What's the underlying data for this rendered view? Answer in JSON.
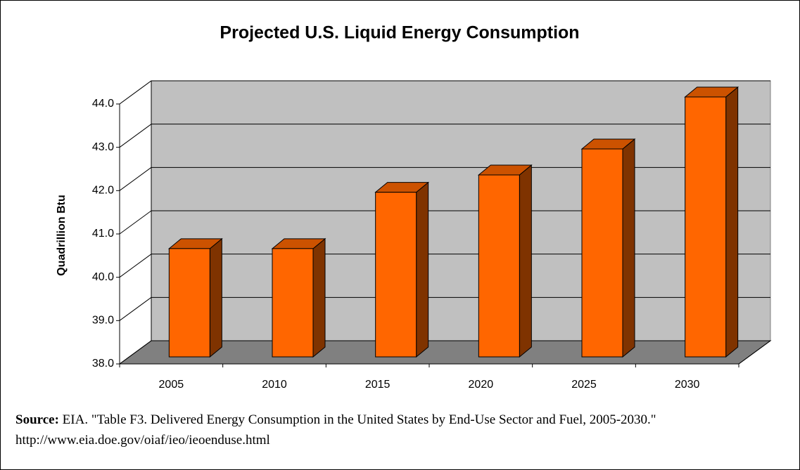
{
  "chart_data": {
    "type": "bar3d",
    "title": "Projected U.S. Liquid Energy Consumption",
    "ylabel": "Quadrillion Btu",
    "categories": [
      "2005",
      "2010",
      "2015",
      "2020",
      "2025",
      "2030"
    ],
    "values": [
      40.5,
      40.5,
      41.8,
      42.2,
      42.8,
      44.0
    ],
    "color": "#FF6600",
    "ylim": [
      38,
      44
    ],
    "yticks": [
      {
        "value": 38,
        "label": "38.0"
      },
      {
        "value": 39,
        "label": "39.0"
      },
      {
        "value": 40,
        "label": "40.0"
      },
      {
        "value": 41,
        "label": "41.0"
      },
      {
        "value": 42,
        "label": "42.0"
      },
      {
        "value": 43,
        "label": "43.0"
      },
      {
        "value": 44,
        "label": "44.0"
      }
    ],
    "grid": true,
    "source_label": "Source:",
    "source_text": "EIA.  \"Table F3.  Delivered Energy Consumption in the United States by End-Use Sector and Fuel, 2005-2030.\"  http://www.eia.doe.gov/oiaf/ieo/ieoenduse.html"
  }
}
